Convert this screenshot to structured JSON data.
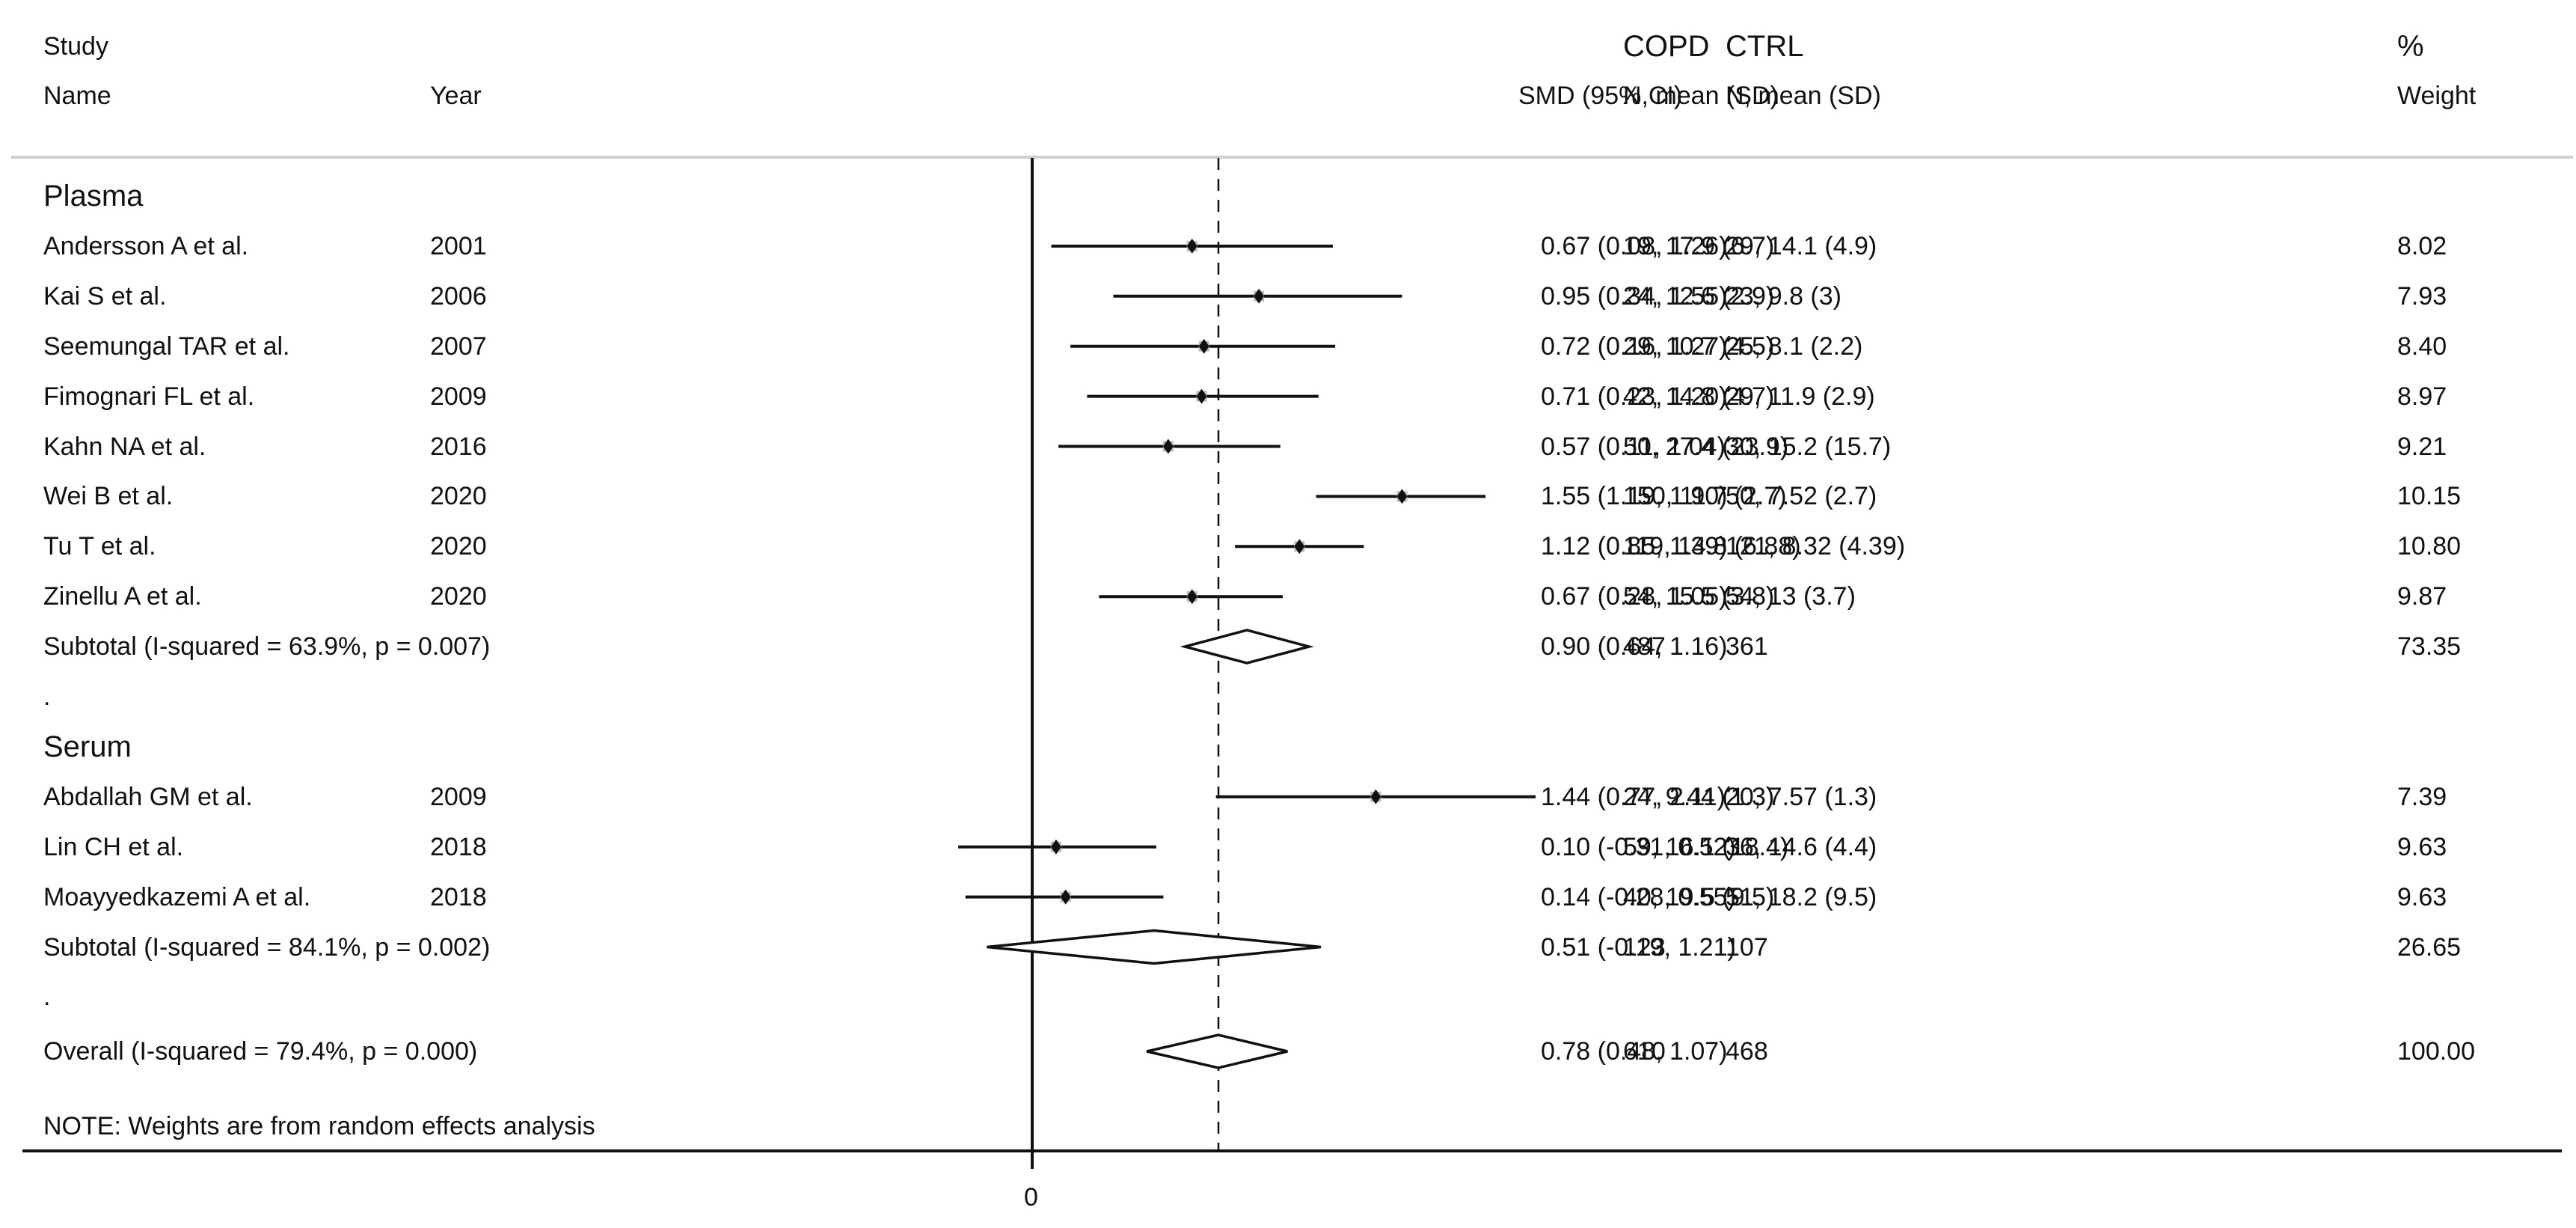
{
  "header": {
    "study_label": "Study",
    "name_label": "Name",
    "year_label": "Year",
    "smd_label": "SMD (95% CI)",
    "copd_label": "COPD",
    "copd_sub": "N, mean (SD)",
    "ctrl_label": "CTRL",
    "ctrl_sub": "N, mean (SD)",
    "weight_label": "%",
    "weight_sub": "Weight"
  },
  "groups": [
    {
      "name": "Plasma",
      "studies": [
        {
          "name": "Andersson A et al.",
          "year": "2001",
          "smd_text": "0.67 (0.08, 1.26)",
          "copd": "19, 17.9 (6.7)",
          "ctrl": "29, 14.1 (4.9)",
          "weight": "8.02"
        },
        {
          "name": "Kai S et al.",
          "year": "2006",
          "smd_text": "0.95 (0.34, 1.55)",
          "copd": "24, 12.6 (2.9)",
          "ctrl": "23, 9.8 (3)",
          "weight": "7.93"
        },
        {
          "name": "Seemungal TAR et al.",
          "year": "2007",
          "smd_text": "0.72 (0.16, 1.27)",
          "copd": "29, 10.7 (4.5)",
          "ctrl": "25, 8.1 (2.2)",
          "weight": "8.40"
        },
        {
          "name": "Fimognari FL et al.",
          "year": "2009",
          "smd_text": "0.71 (0.23, 1.20)",
          "copd": "42, 14.8 (4.7)",
          "ctrl": "29, 11.9 (2.9)",
          "weight": "8.97"
        },
        {
          "name": "Kahn NA et al.",
          "year": "2016",
          "smd_text": "0.57 (0.11, 1.04)",
          "copd": "50, 27.4 (23.9)",
          "ctrl": "30, 15.2 (15.7)",
          "weight": "9.21"
        },
        {
          "name": "Wei B et al.",
          "year": "2020",
          "smd_text": "1.55 (1.19, 1.90)",
          "copd": "150, 11.7 (2.7)",
          "ctrl": "50, 7.52 (2.7)",
          "weight": "10.15"
        },
        {
          "name": "Tu T et al.",
          "year": "2020",
          "smd_text": "1.12 (0.85, 1.39)",
          "copd": "119, 14.8 (6.88)",
          "ctrl": "121, 8.32 (4.39)",
          "weight": "10.80"
        },
        {
          "name": "Zinellu A et al.",
          "year": "2020",
          "smd_text": "0.67 (0.28, 1.05)",
          "copd": "54, 15.5 (3.8)",
          "ctrl": "54, 13 (3.7)",
          "weight": "9.87"
        }
      ],
      "subtotal": {
        "label": "Subtotal  (I-squared = 63.9%, p = 0.007)",
        "smd_text": "0.90 (0.64, 1.16)",
        "copd": "487",
        "ctrl": "361",
        "weight": "73.35"
      },
      "spacer": "."
    },
    {
      "name": "Serum",
      "studies": [
        {
          "name": "Abdallah GM et al.",
          "year": "2009",
          "smd_text": "1.44 (0.77, 2.11)",
          "copd": "24, 9.44 (1.3)",
          "ctrl": "20, 7.57 (1.3)",
          "weight": "7.39"
        },
        {
          "name": "Lin CH et al.",
          "year": "2018",
          "smd_text": "0.10 (-0.31, 0.52)",
          "copd": "59, 16.1 (18.4)",
          "ctrl": "36, 14.6 (4.4)",
          "weight": "9.63"
        },
        {
          "name": "Moayyedkazemi A et al.",
          "year": "2018",
          "smd_text": "0.14 (-0.28, 0.55)",
          "copd": "40, 19.5 (9.5)",
          "ctrl": "51, 18.2 (9.5)",
          "weight": "9.63"
        }
      ],
      "subtotal": {
        "label": "Subtotal  (I-squared = 84.1%, p = 0.002)",
        "smd_text": "0.51 (-0.19, 1.21)",
        "copd": "123",
        "ctrl": "107",
        "weight": "26.65"
      },
      "spacer": "."
    }
  ],
  "overall": {
    "label": "Overall  (I-squared = 79.4%, p = 0.000)",
    "smd_text": "0.78 (0.48, 1.07)",
    "copd": "610",
    "ctrl": "468",
    "weight": "100.00"
  },
  "note": "NOTE: Weights are from random effects analysis",
  "axis": {
    "zero_label": "0"
  },
  "chart_data": {
    "type": "forest",
    "title": "",
    "xlabel": "SMD (95% CI)",
    "reference_line": 0,
    "overall_line": 0.78,
    "x_tick_labels": [
      "0"
    ],
    "series": [
      {
        "group": "Plasma",
        "study": "Andersson A et al.",
        "year": 2001,
        "smd": 0.67,
        "lower": 0.08,
        "upper": 1.26,
        "weight": 8.02
      },
      {
        "group": "Plasma",
        "study": "Kai S et al.",
        "year": 2006,
        "smd": 0.95,
        "lower": 0.34,
        "upper": 1.55,
        "weight": 7.93
      },
      {
        "group": "Plasma",
        "study": "Seemungal TAR et al.",
        "year": 2007,
        "smd": 0.72,
        "lower": 0.16,
        "upper": 1.27,
        "weight": 8.4
      },
      {
        "group": "Plasma",
        "study": "Fimognari FL et al.",
        "year": 2009,
        "smd": 0.71,
        "lower": 0.23,
        "upper": 1.2,
        "weight": 8.97
      },
      {
        "group": "Plasma",
        "study": "Kahn NA et al.",
        "year": 2016,
        "smd": 0.57,
        "lower": 0.11,
        "upper": 1.04,
        "weight": 9.21
      },
      {
        "group": "Plasma",
        "study": "Wei B et al.",
        "year": 2020,
        "smd": 1.55,
        "lower": 1.19,
        "upper": 1.9,
        "weight": 10.15
      },
      {
        "group": "Plasma",
        "study": "Tu T et al.",
        "year": 2020,
        "smd": 1.12,
        "lower": 0.85,
        "upper": 1.39,
        "weight": 10.8
      },
      {
        "group": "Plasma",
        "study": "Zinellu A et al.",
        "year": 2020,
        "smd": 0.67,
        "lower": 0.28,
        "upper": 1.05,
        "weight": 9.87
      },
      {
        "group": "Plasma",
        "study": "Subtotal",
        "smd": 0.9,
        "lower": 0.64,
        "upper": 1.16,
        "weight": 73.35,
        "i_squared": 63.9,
        "p": 0.007,
        "diamond": true
      },
      {
        "group": "Serum",
        "study": "Abdallah GM et al.",
        "year": 2009,
        "smd": 1.44,
        "lower": 0.77,
        "upper": 2.11,
        "weight": 7.39
      },
      {
        "group": "Serum",
        "study": "Lin CH et al.",
        "year": 2018,
        "smd": 0.1,
        "lower": -0.31,
        "upper": 0.52,
        "weight": 9.63
      },
      {
        "group": "Serum",
        "study": "Moayyedkazemi A et al.",
        "year": 2018,
        "smd": 0.14,
        "lower": -0.28,
        "upper": 0.55,
        "weight": 9.63
      },
      {
        "group": "Serum",
        "study": "Subtotal",
        "smd": 0.51,
        "lower": -0.19,
        "upper": 1.21,
        "weight": 26.65,
        "i_squared": 84.1,
        "p": 0.002,
        "diamond": true
      },
      {
        "group": "Overall",
        "study": "Overall",
        "smd": 0.78,
        "lower": 0.48,
        "upper": 1.07,
        "weight": 100.0,
        "i_squared": 79.4,
        "p": 0.0,
        "diamond": true
      }
    ],
    "note": "NOTE: Weights are from random effects analysis"
  }
}
